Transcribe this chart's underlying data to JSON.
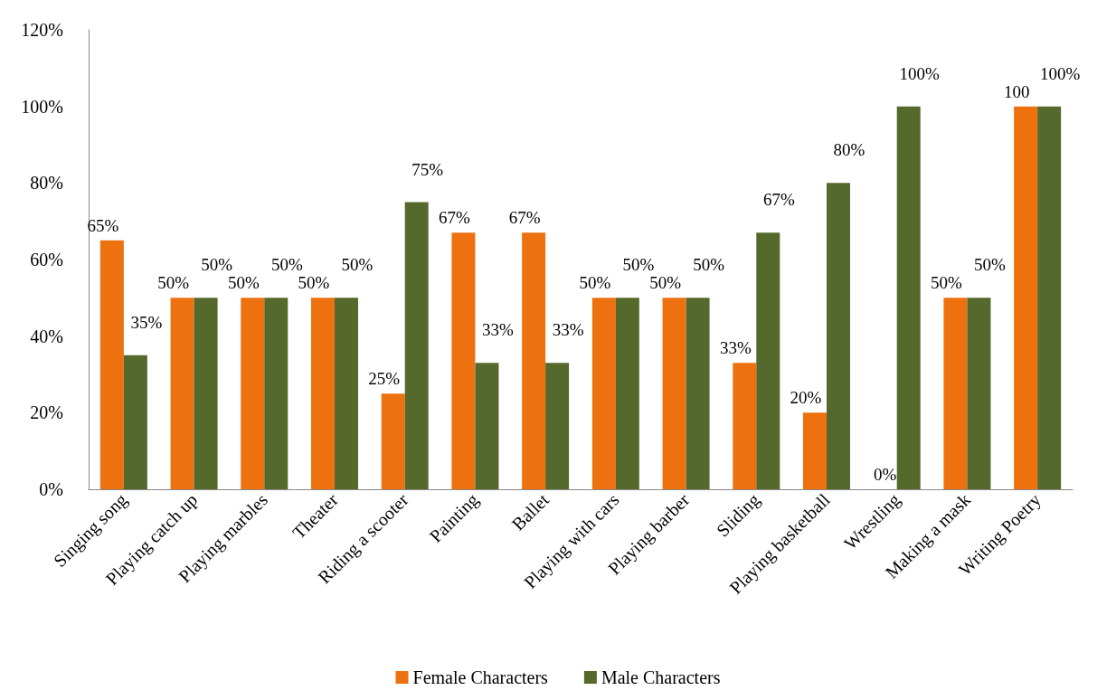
{
  "chart_data": {
    "type": "bar",
    "categories": [
      "Singing song",
      "Playing catch up",
      "Playing marbles",
      "Theater",
      "Riding a scooter",
      "Painting",
      "Ballet",
      "Playing with cars",
      "Playing barber",
      "Sliding",
      "Playing basketball",
      "Wrestling",
      "Making a mask",
      "Writing Poetry"
    ],
    "series": [
      {
        "name": "Female Characters",
        "color": "#ee7110",
        "values": [
          65,
          50,
          50,
          50,
          25,
          67,
          67,
          50,
          50,
          33,
          20,
          0,
          50,
          100
        ],
        "value_labels": [
          "65%",
          "50%",
          "50%",
          "50%",
          "25%",
          "67%",
          "67%",
          "50%",
          "50%",
          "33%",
          "20%",
          "0%",
          "50%",
          "100"
        ]
      },
      {
        "name": "Male Characters",
        "color": "#56692c",
        "values": [
          35,
          50,
          50,
          50,
          75,
          33,
          33,
          50,
          50,
          67,
          80,
          100,
          50,
          100
        ],
        "value_labels": [
          "35%",
          "50%",
          "50%",
          "50%",
          "75%",
          "33%",
          "33%",
          "50%",
          "50%",
          "67%",
          "80%",
          "100%",
          "50%",
          "100%"
        ]
      }
    ],
    "ylim": [
      0,
      120
    ],
    "yticks": [
      {
        "value": 0,
        "label": "0%"
      },
      {
        "value": 20,
        "label": "20%"
      },
      {
        "value": 40,
        "label": "40%"
      },
      {
        "value": 60,
        "label": "60%"
      },
      {
        "value": 80,
        "label": "80%"
      },
      {
        "value": 100,
        "label": "100%"
      },
      {
        "value": 120,
        "label": "120%"
      }
    ],
    "grid": false,
    "legend": "bottom"
  }
}
